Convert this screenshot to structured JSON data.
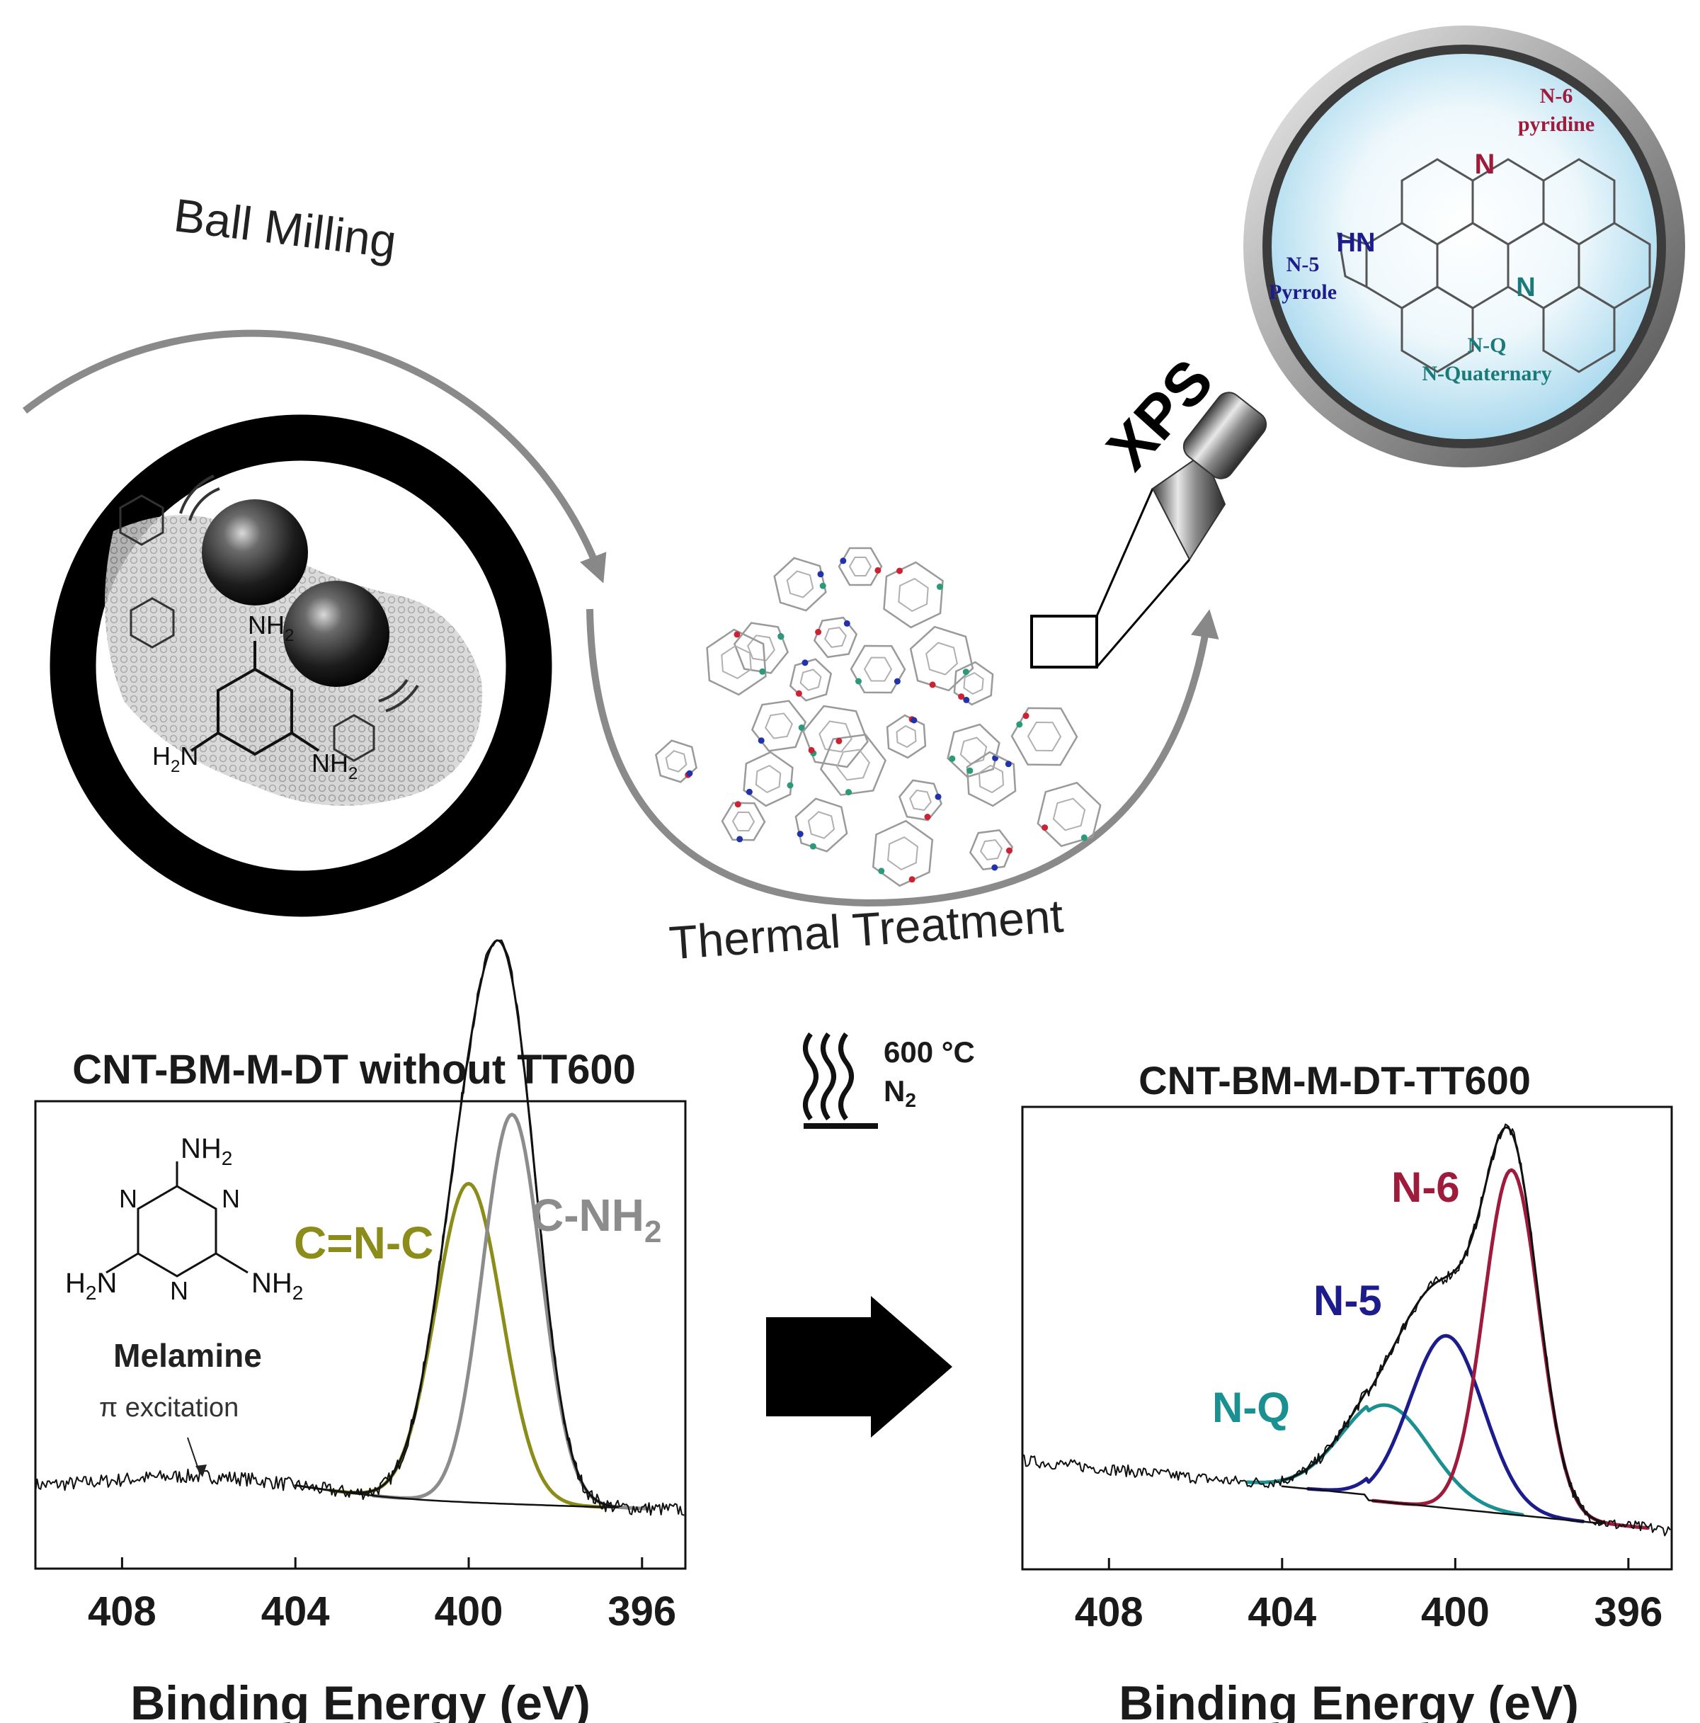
{
  "process": {
    "ball_milling_label": "Ball Milling",
    "thermal_treatment_label": "Thermal Treatment",
    "xps_label": "XPS",
    "conditions": {
      "temperature": "600 °C",
      "gas": "N",
      "gas_sub": "2"
    }
  },
  "melamine_ball": {
    "nh2": "NH",
    "sub": "2",
    "h2n": "H",
    "n": "N"
  },
  "magnifier": {
    "n6_label": "N-6",
    "n6_name": "pyridine",
    "n5_label": "N-5",
    "n5_name": "Pyrrole",
    "nq_label": "N-Q",
    "nq_name": "N-Quaternary",
    "hn": "HN",
    "n": "N"
  },
  "colors": {
    "n6": "#9e1b3c",
    "n5": "#1c1c8c",
    "nq": "#1a9090",
    "cnc": "#8c8c1a",
    "cnh2": "#8c8c8c"
  },
  "chart_data": [
    {
      "type": "line",
      "title": "CNT-BM-M-DT without TT600",
      "xlabel": "Binding Energy (eV)",
      "xlim": [
        410,
        395
      ],
      "xticks": [
        408,
        404,
        400,
        396
      ],
      "series": [
        {
          "name": "C=N-C",
          "color": "#8c8c1a",
          "peak_x": 400.0,
          "peak_height": 0.45,
          "fwhm": 1.8
        },
        {
          "name": "C-NH2",
          "color": "#8c8c8c",
          "peak_x": 399.0,
          "peak_height": 0.55,
          "fwhm": 1.6
        }
      ],
      "annotation": "π excitation",
      "inset": {
        "caption": "Melamine",
        "nh2": "NH",
        "sub": "2",
        "h2n": "H",
        "n": "N"
      }
    },
    {
      "type": "line",
      "title": "CNT-BM-M-DT-TT600",
      "xlabel": "Binding Energy (eV)",
      "xlim": [
        410,
        395
      ],
      "xticks": [
        408,
        404,
        400,
        396
      ],
      "series": [
        {
          "name": "N-Q",
          "color": "#1a9090",
          "peak_x": 401.6,
          "peak_height": 0.18,
          "fwhm": 2.4
        },
        {
          "name": "N-5",
          "color": "#1c1c8c",
          "peak_x": 400.2,
          "peak_height": 0.32,
          "fwhm": 2.0
        },
        {
          "name": "N-6",
          "color": "#9e1b3c",
          "peak_x": 398.7,
          "peak_height": 0.64,
          "fwhm": 1.5
        }
      ]
    }
  ]
}
